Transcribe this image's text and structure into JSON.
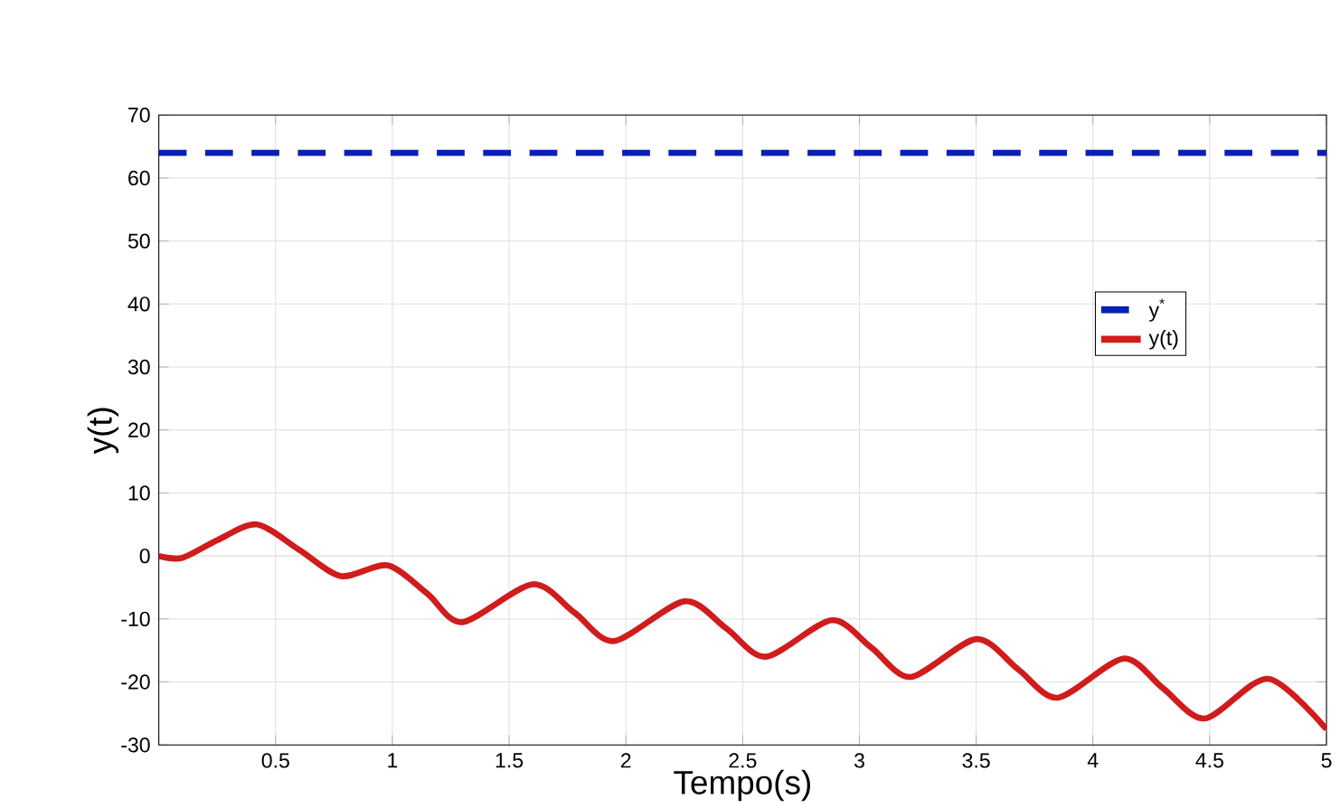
{
  "chart_data": {
    "type": "line",
    "xlabel": "Tempo(s)",
    "ylabel": "y(t)",
    "xlim": [
      0,
      5
    ],
    "ylim": [
      -30,
      70
    ],
    "xticks": [
      {
        "value": 0,
        "label": null
      },
      0.5,
      1,
      1.5,
      2,
      2.5,
      3,
      3.5,
      4,
      4.5,
      5
    ],
    "yticks": [
      -30,
      -20,
      -10,
      0,
      10,
      20,
      30,
      40,
      50,
      60,
      70
    ],
    "grid": true,
    "legend": "right",
    "series": [
      {
        "name": "y$^{*}$",
        "color": "#0a1fb4",
        "line_style": "dashed",
        "x": [
          0,
          5
        ],
        "values": [
          64,
          64
        ]
      },
      {
        "name": "y(t)",
        "color": "#d01c1c",
        "line_style": "solid",
        "x": [
          0,
          0.1,
          0.25,
          0.42,
          0.6,
          0.78,
          0.98,
          1.15,
          1.3,
          1.6,
          1.78,
          1.95,
          2.25,
          2.43,
          2.6,
          2.88,
          3.05,
          3.22,
          3.5,
          3.68,
          3.85,
          4.13,
          4.3,
          4.48,
          4.75,
          5
        ],
        "values": [
          0,
          -0.3,
          2.5,
          5,
          1,
          -3.2,
          -1.5,
          -6,
          -10.5,
          -4.5,
          -9,
          -13.5,
          -7.2,
          -11.5,
          -16,
          -10.2,
          -14.5,
          -19.2,
          -13.2,
          -18,
          -22.5,
          -16.3,
          -21,
          -25.8,
          -19.5,
          -27.5
        ]
      }
    ]
  }
}
